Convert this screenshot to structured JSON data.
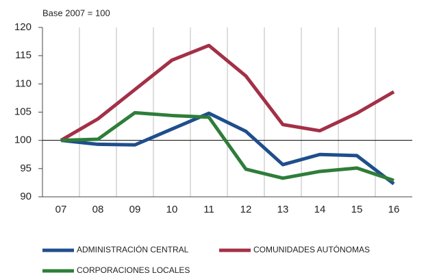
{
  "chart_data": {
    "type": "line",
    "subtitle": "Base 2007 = 100",
    "categories": [
      "07",
      "08",
      "09",
      "10",
      "11",
      "12",
      "13",
      "14",
      "15",
      "16"
    ],
    "series": [
      {
        "name": "ADMINISTRACIÓN CENTRAL",
        "color": "#1f4e8c",
        "values": [
          100,
          99.3,
          99.2,
          102,
          104.8,
          101.6,
          95.7,
          97.5,
          97.3,
          92.3
        ]
      },
      {
        "name": "COMUNIDADES AUTÓNOMAS",
        "color": "#a33047",
        "values": [
          100,
          103.8,
          109,
          114.2,
          116.8,
          111.4,
          102.8,
          101.7,
          104.8,
          108.6
        ]
      },
      {
        "name": "CORPORACIONES LOCALES",
        "color": "#2e7d3a",
        "values": [
          100,
          100.2,
          104.9,
          104.4,
          104.1,
          94.9,
          93.3,
          94.5,
          95.1,
          92.9
        ]
      }
    ],
    "ylim": [
      90,
      120
    ],
    "yticks": [
      90,
      95,
      100,
      105,
      110,
      115,
      120
    ],
    "reference_line": 100
  }
}
